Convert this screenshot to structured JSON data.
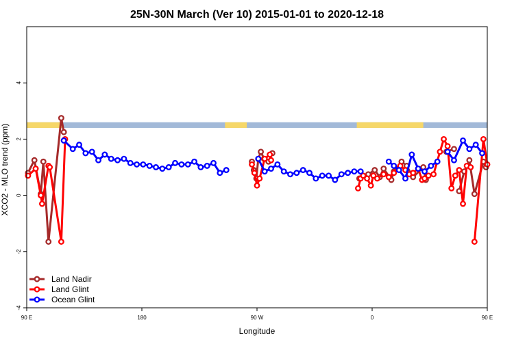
{
  "chart_data": {
    "type": "line",
    "title": "25N-30N March (Ver 10)   2015-01-01 to 2020-12-18",
    "xlabel": "Longitude",
    "ylabel": "XCO2 - MLO trend (ppm)",
    "xlim": [
      90,
      450
    ],
    "ylim": [
      -4,
      6
    ],
    "x_ticks": [
      {
        "value": 90,
        "label": "90 E"
      },
      {
        "value": 180,
        "label": "180"
      },
      {
        "value": 270,
        "label": "90 W"
      },
      {
        "value": 360,
        "label": "0"
      },
      {
        "value": 450,
        "label": "90 E"
      },
      {
        "value": 540,
        "label": "180"
      }
    ],
    "y_ticks": [
      {
        "value": -4,
        "label": "-4"
      },
      {
        "value": -2,
        "label": "-2"
      },
      {
        "value": 0,
        "label": "0"
      },
      {
        "value": 2,
        "label": "2"
      },
      {
        "value": 4,
        "label": "4"
      }
    ],
    "legend_position": "bottom-left",
    "land_mask_band": {
      "y_range": [
        2.4,
        2.6
      ],
      "ocean_color": "#a2b9d8",
      "land_color": "#f6d768",
      "land_segments": [
        [
          90,
          118
        ],
        [
          245,
          262
        ],
        [
          348,
          400
        ],
        [
          450,
          478
        ]
      ]
    },
    "series": [
      {
        "name": "Land Nadir",
        "color": "#a52a2a",
        "x": [
          91,
          96,
          101,
          103,
          107,
          117,
          119,
          266,
          267.5,
          269.5,
          271,
          273,
          275.5,
          279,
          282,
          350,
          357,
          362,
          366,
          369,
          375,
          377,
          383,
          387,
          392,
          400,
          402,
          418,
          424,
          428,
          432,
          436,
          440,
          447,
          449,
          451,
          464,
          467,
          478,
          480
        ],
        "y": [
          0.8,
          1.25,
          0.05,
          1.2,
          -1.65,
          2.75,
          2.25,
          1.2,
          0.9,
          0.6,
          1.3,
          1.55,
          1.3,
          1.2,
          1.5,
          0.6,
          0.75,
          0.9,
          0.65,
          0.95,
          0.55,
          0.85,
          1.2,
          1.05,
          0.65,
          1.0,
          0.55,
          1.55,
          1.65,
          0.15,
          0.85,
          1.25,
          0.05,
          1.2,
          1.0,
          -1.65,
          2.75,
          2.25,
          0.6,
          0.35
        ],
        "segment_breaks": [
          7,
          15,
          27,
          29
        ]
      },
      {
        "name": "Land Glint",
        "color": "#ff0000",
        "x": [
          91,
          97,
          101,
          102,
          107,
          108,
          117,
          120,
          266,
          268,
          270,
          272,
          276,
          280,
          281,
          349,
          351,
          353,
          356,
          359,
          361,
          364,
          369,
          373,
          377,
          382,
          386,
          389,
          392,
          396,
          399,
          401,
          404,
          408,
          413,
          416,
          419,
          422,
          425,
          428,
          431,
          434,
          437,
          440,
          447,
          450,
          459,
          462,
          469,
          471,
          475,
          478
        ],
        "y": [
          0.7,
          0.95,
          0.0,
          -0.3,
          1.05,
          1.0,
          -1.65,
          2.0,
          1.1,
          0.8,
          0.35,
          0.6,
          1.3,
          1.45,
          1.25,
          0.25,
          0.6,
          0.7,
          0.6,
          0.35,
          0.7,
          0.6,
          0.75,
          0.65,
          0.8,
          1.05,
          0.9,
          0.75,
          0.8,
          0.95,
          0.55,
          0.6,
          0.7,
          0.75,
          1.55,
          2.0,
          1.75,
          0.25,
          0.7,
          0.9,
          -0.3,
          1.05,
          1.0,
          -1.65,
          2.0,
          1.1,
          0.8,
          0.35,
          0.6,
          1.3,
          1.45,
          1.25
        ],
        "segment_breaks": [
          8,
          15,
          43
        ]
      },
      {
        "name": "Ocean Glint",
        "color": "#0000ff",
        "x": [
          119,
          126,
          131,
          136,
          141,
          146,
          151,
          156,
          161,
          166,
          171,
          176,
          181,
          186,
          191,
          196,
          201,
          206,
          211,
          216,
          221,
          226,
          231,
          236,
          241,
          246,
          271,
          276,
          281,
          286,
          291,
          296,
          301,
          306,
          311,
          316,
          321,
          326,
          331,
          336,
          341,
          346,
          351,
          373,
          377,
          381,
          386,
          391,
          396,
          401,
          406,
          411,
          419,
          424,
          431,
          436,
          441,
          446,
          451,
          456,
          461,
          466,
          471,
          476,
          479,
          482,
          486
        ],
        "y": [
          1.95,
          1.65,
          1.8,
          1.5,
          1.55,
          1.25,
          1.45,
          1.3,
          1.25,
          1.3,
          1.15,
          1.1,
          1.1,
          1.05,
          1.0,
          0.95,
          1.0,
          1.15,
          1.1,
          1.1,
          1.2,
          1.0,
          1.05,
          1.15,
          0.8,
          0.9,
          1.3,
          0.85,
          0.95,
          1.1,
          0.85,
          0.75,
          0.8,
          0.9,
          0.8,
          0.6,
          0.7,
          0.7,
          0.55,
          0.75,
          0.8,
          0.85,
          0.85,
          1.2,
          1.05,
          0.9,
          0.6,
          1.45,
          0.95,
          0.85,
          1.05,
          1.2,
          1.55,
          1.25,
          1.95,
          1.65,
          1.8,
          1.5,
          1.55,
          1.25,
          1.45,
          1.3,
          1.25,
          1.3,
          1.15,
          1.1,
          1.1
        ],
        "segment_breaks": [
          26,
          43,
          52
        ]
      }
    ]
  }
}
